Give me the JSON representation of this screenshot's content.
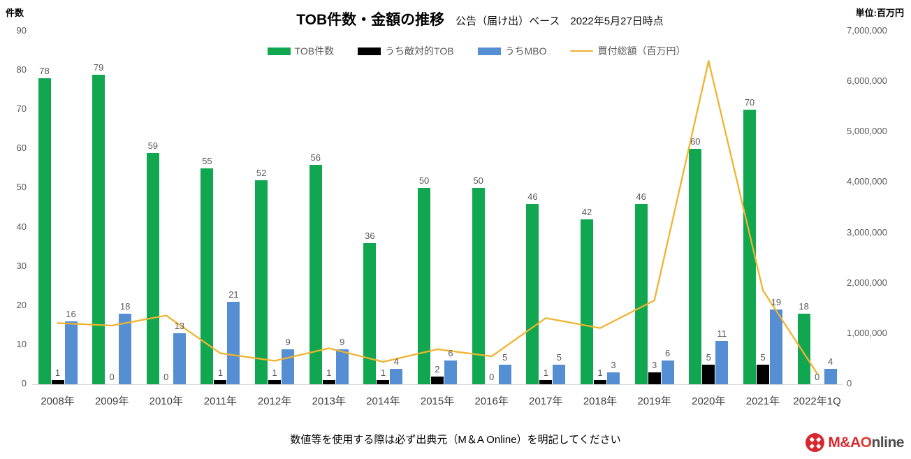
{
  "title": {
    "main": "TOB件数・金額の推移",
    "sub": "公告（届け出）ベース　2022年5月27日時点"
  },
  "axis_left": {
    "title": "件数",
    "ticks": [
      {
        "value": 0,
        "label": "0"
      },
      {
        "value": 10,
        "label": "10"
      },
      {
        "value": 20,
        "label": "20"
      },
      {
        "value": 30,
        "label": "30"
      },
      {
        "value": 40,
        "label": "40"
      },
      {
        "value": 50,
        "label": "50"
      },
      {
        "value": 60,
        "label": "60"
      },
      {
        "value": 70,
        "label": "70"
      },
      {
        "value": 80,
        "label": "80"
      },
      {
        "value": 90,
        "label": "90"
      }
    ]
  },
  "axis_right": {
    "title": "単位:百万円",
    "ticks": [
      {
        "value": 0,
        "label": "0"
      },
      {
        "value": 1000000,
        "label": "1,000,000"
      },
      {
        "value": 2000000,
        "label": "2,000,000"
      },
      {
        "value": 3000000,
        "label": "3,000,000"
      },
      {
        "value": 4000000,
        "label": "4,000,000"
      },
      {
        "value": 5000000,
        "label": "5,000,000"
      },
      {
        "value": 6000000,
        "label": "6,000,000"
      },
      {
        "value": 7000000,
        "label": "7,000,000"
      }
    ]
  },
  "legend": [
    {
      "label": "TOB件数",
      "color": "#11a751",
      "shape": "bar"
    },
    {
      "label": "うち敵対的TOB",
      "color": "#000000",
      "shape": "bar"
    },
    {
      "label": "うちMBO",
      "color": "#568ed4",
      "shape": "bar"
    },
    {
      "label": "買付総額（百万円）",
      "color": "#efb32f",
      "shape": "line"
    }
  ],
  "chart_data": {
    "type": "bar+line",
    "categories": [
      "2008年",
      "2009年",
      "2010年",
      "2011年",
      "2012年",
      "2013年",
      "2014年",
      "2015年",
      "2016年",
      "2017年",
      "2018年",
      "2019年",
      "2020年",
      "2021年",
      "2022年1Q"
    ],
    "series": [
      {
        "name": "TOB件数",
        "type": "bar",
        "axis": "left",
        "color": "#11a751",
        "show_labels": true,
        "values": [
          78,
          79,
          59,
          55,
          52,
          56,
          36,
          50,
          50,
          46,
          42,
          46,
          60,
          70,
          18
        ]
      },
      {
        "name": "うち敵対的TOB",
        "type": "bar",
        "axis": "left",
        "color": "#000000",
        "show_labels": true,
        "values": [
          1,
          0,
          0,
          1,
          1,
          1,
          1,
          2,
          0,
          1,
          1,
          3,
          5,
          5,
          0
        ]
      },
      {
        "name": "うちMBO",
        "type": "bar",
        "axis": "left",
        "color": "#568ed4",
        "show_labels": true,
        "values": [
          16,
          18,
          13,
          21,
          9,
          9,
          4,
          6,
          5,
          5,
          3,
          6,
          11,
          19,
          4
        ]
      },
      {
        "name": "買付総額（百万円）",
        "type": "line",
        "axis": "right",
        "color": "#efb32f",
        "show_labels": false,
        "values": [
          1200000,
          1150000,
          1350000,
          600000,
          450000,
          700000,
          430000,
          680000,
          540000,
          1300000,
          1100000,
          1650000,
          6400000,
          1850000,
          200000
        ]
      }
    ],
    "ylim_left": [
      0,
      90
    ],
    "ylim_right": [
      0,
      7000000
    ],
    "grid": false,
    "legend_position": "top",
    "data_label_color": "#595959",
    "axis_line_color": "#d9d9d9"
  },
  "footer": {
    "note": "数値等を使用する際は必ず出典元（M＆A Online）を明記してください",
    "logo": {
      "part_red": "M&A",
      "part_o": "O",
      "part_gray": "nline"
    }
  }
}
